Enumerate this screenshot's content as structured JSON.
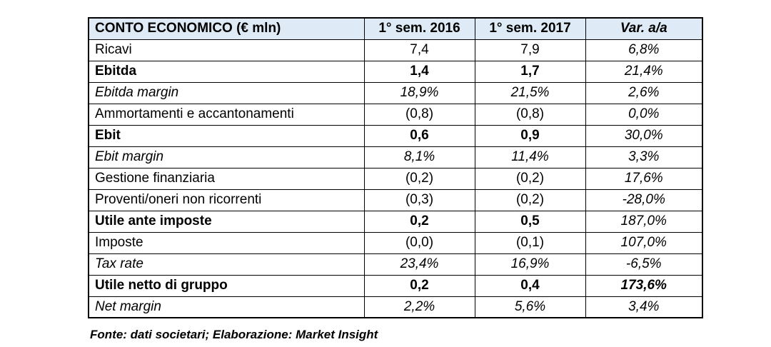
{
  "table": {
    "headers": {
      "metric": "CONTO ECONOMICO (€ mln)",
      "sem2016": "1° sem. 2016",
      "sem2017": "1° sem. 2017",
      "var": "Var. a/a"
    },
    "rows": [
      {
        "label": "Ricavi",
        "sem2016": "7,4",
        "sem2017": "7,9",
        "var": "6,8%"
      },
      {
        "label": "Ebitda",
        "sem2016": "1,4",
        "sem2017": "1,7",
        "var": "21,4%"
      },
      {
        "label": "Ebitda margin",
        "sem2016": "18,9%",
        "sem2017": "21,5%",
        "var": "2,6%"
      },
      {
        "label": "Ammortamenti e accantonamenti",
        "sem2016": "(0,8)",
        "sem2017": "(0,8)",
        "var": "0,0%"
      },
      {
        "label": "Ebit",
        "sem2016": "0,6",
        "sem2017": "0,9",
        "var": "30,0%"
      },
      {
        "label": "Ebit margin",
        "sem2016": "8,1%",
        "sem2017": "11,4%",
        "var": "3,3%"
      },
      {
        "label": "Gestione finanziaria",
        "sem2016": "(0,2)",
        "sem2017": "(0,2)",
        "var": "17,6%"
      },
      {
        "label": "Proventi/oneri non ricorrenti",
        "sem2016": "(0,3)",
        "sem2017": "(0,2)",
        "var": "-28,0%"
      },
      {
        "label": "Utile ante imposte",
        "sem2016": "0,2",
        "sem2017": "0,5",
        "var": "187,0%"
      },
      {
        "label": "Imposte",
        "sem2016": "(0,0)",
        "sem2017": "(0,1)",
        "var": "107,0%"
      },
      {
        "label": "Tax rate",
        "sem2016": "23,4%",
        "sem2017": "16,9%",
        "var": "-6,5%"
      },
      {
        "label": "Utile netto di gruppo",
        "sem2016": "0,2",
        "sem2017": "0,4",
        "var": "173,6%"
      },
      {
        "label": "Net margin",
        "sem2016": "2,2%",
        "sem2017": "5,6%",
        "var": "3,4%"
      }
    ]
  },
  "footer": {
    "source_note": "Fonte: dati societari; Elaborazione: Market Insight"
  },
  "colors": {
    "header_bg": "#DEEBF7",
    "border": "#000000"
  }
}
